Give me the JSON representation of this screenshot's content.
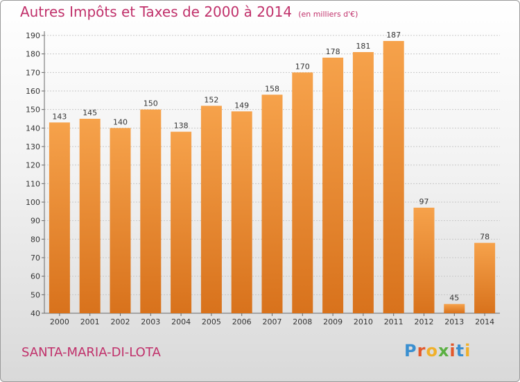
{
  "title": "Autres Impôts et Taxes de 2000 à 2014",
  "unit": "(en milliers d'€)",
  "commune": "SANTA-MARIA-DI-LOTA",
  "logo": {
    "letters": [
      "P",
      "r",
      "o",
      "x",
      "i",
      "t",
      "i"
    ],
    "colors": [
      "#3a8fd0",
      "#e2582b",
      "#f0b02a",
      "#5bb042",
      "#e2582b",
      "#3a8fd0",
      "#f0b02a"
    ]
  },
  "colors": {
    "bar_top": "#f6a24b",
    "bar_bottom": "#d8721c",
    "accent": "#c0306a"
  },
  "chart_data": {
    "type": "bar",
    "title": "Autres Impôts et Taxes de 2000 à 2014",
    "subtitle": "(en milliers d'€)",
    "categories": [
      "2000",
      "2001",
      "2002",
      "2003",
      "2004",
      "2005",
      "2006",
      "2007",
      "2008",
      "2009",
      "2010",
      "2011",
      "2012",
      "2013",
      "2014"
    ],
    "values": [
      143,
      145,
      140,
      150,
      138,
      152,
      149,
      158,
      170,
      178,
      181,
      187,
      97,
      45,
      78
    ],
    "ylim": [
      40,
      190
    ],
    "yticks": [
      40,
      50,
      60,
      70,
      80,
      90,
      100,
      110,
      120,
      130,
      140,
      150,
      160,
      170,
      180,
      190
    ],
    "grid": true,
    "legend": "none"
  }
}
